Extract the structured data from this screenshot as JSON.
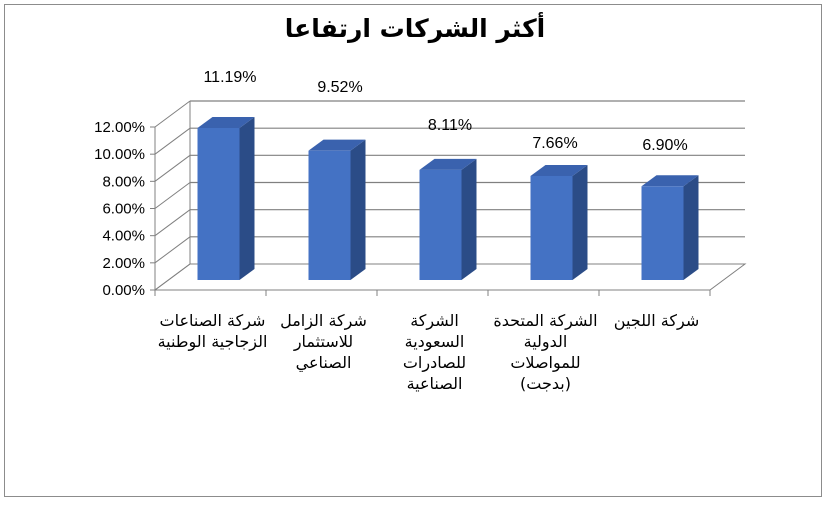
{
  "chart_data": {
    "type": "bar",
    "title": "أكثر الشركات ارتفاعا",
    "categories": [
      "شركة الصناعات الزجاجية الوطنية",
      "شركة الزامل للاستثمار الصناعي",
      "الشركة السعودية للصادرات الصناعية",
      "الشركة المتحدة الدولية للمواصلات (بدجت)",
      "شركة اللجين"
    ],
    "values": [
      11.19,
      9.52,
      8.11,
      7.66,
      6.9
    ],
    "data_labels": [
      "11.19%",
      "9.52%",
      "8.11%",
      "7.66%",
      "6.90%"
    ],
    "ylim": [
      0,
      12
    ],
    "yticks": [
      "0.00%",
      "2.00%",
      "4.00%",
      "6.00%",
      "8.00%",
      "10.00%",
      "12.00%"
    ],
    "xlabel": "",
    "ylabel": "",
    "grid": true,
    "legend": "none",
    "colors": {
      "bar_front": "#4472C4",
      "bar_side": "#2B4C87",
      "bar_top": "#3A62AE",
      "grid": "#808080"
    }
  }
}
